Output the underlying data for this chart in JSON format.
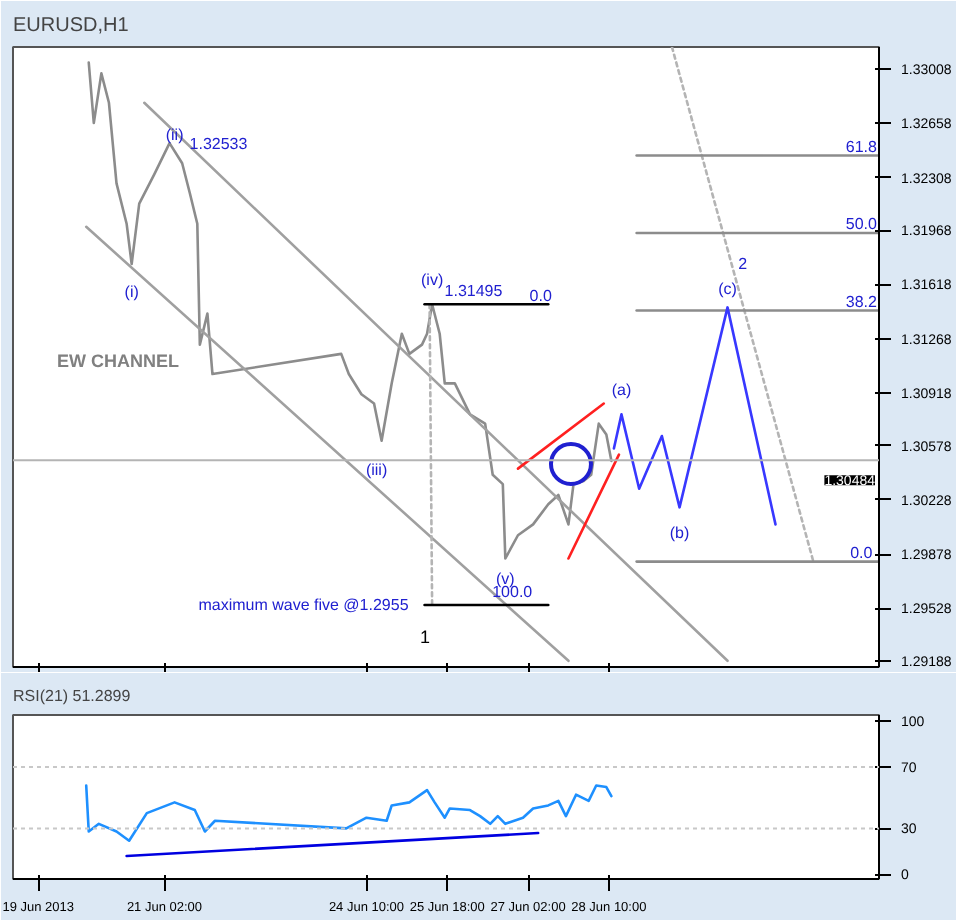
{
  "chart_data": [
    {
      "type": "line",
      "title": "EURUSD,H1",
      "xlim": [
        "2013-06-18T14:00",
        "2013-07-02T21:00"
      ],
      "ylim": [
        1.2915,
        1.3315
      ],
      "xticks": [
        {
          "value": "2013-06-19",
          "label": null
        },
        {
          "value": "2013-06-21T02:00",
          "label": null
        },
        {
          "value": "2013-06-24T10:00",
          "label": null
        },
        {
          "value": "2013-06-25T18:00",
          "label": null
        },
        {
          "value": "2013-06-27T02:00",
          "label": null
        },
        {
          "value": "2013-06-28T10:00",
          "label": null
        }
      ],
      "yticks": [
        1.33008,
        1.32658,
        1.32308,
        1.31968,
        1.31618,
        1.31268,
        1.30918,
        1.30578,
        1.30228,
        1.29878,
        1.29528,
        1.29188
      ],
      "tick_labels": "y",
      "grid": false,
      "marker": "none",
      "series": [
        {
          "color": "#8c8c8c",
          "x": [
            "2013-06-19T20:00",
            "2013-06-19T22:00",
            "2013-06-20T01:00",
            "2013-06-20T04:00",
            "2013-06-20T07:00",
            "2013-06-20T11:00",
            "2013-06-20T13:00",
            "2013-06-20T16:00",
            "2013-06-20T22:00",
            "2013-06-21T04:00",
            "2013-06-21T09:00",
            "2013-06-21T12:00",
            "2013-06-21T15:00",
            "2013-06-21T16:00",
            "2013-06-21T19:00",
            "2013-06-21T21:00",
            "2013-06-24T00:00",
            "2013-06-24T03:00",
            "2013-06-24T08:00",
            "2013-06-24T13:00",
            "2013-06-24T16:00",
            "2013-06-24T20:00",
            "2013-06-25T00:00",
            "2013-06-25T03:00",
            "2013-06-25T08:00",
            "2013-06-25T10:00",
            "2013-06-25T12:00",
            "2013-06-25T15:00",
            "2013-06-25T17:00",
            "2013-06-25T21:00",
            "2013-06-26T03:00",
            "2013-06-26T09:00",
            "2013-06-26T12:00",
            "2013-06-26T16:00",
            "2013-06-26T17:00",
            "2013-06-26T22:00",
            "2013-06-27T04:00",
            "2013-06-27T10:00",
            "2013-06-27T14:00",
            "2013-06-27T18:00",
            "2013-06-27T20:00",
            "2013-06-28T00:00",
            "2013-06-28T03:00",
            "2013-06-28T06:00",
            "2013-06-28T09:00",
            "2013-06-28T11:00"
          ],
          "values": [
            1.3305,
            1.3266,
            1.3298,
            1.3279,
            1.3227,
            1.3201,
            1.3175,
            1.3214,
            1.3233,
            1.3253,
            1.324,
            1.3221,
            1.3201,
            1.3123,
            1.3143,
            1.3104,
            1.3117,
            1.3104,
            1.3091,
            1.3085,
            1.3061,
            1.3098,
            1.313,
            1.3117,
            1.3123,
            1.313,
            1.3149,
            1.313,
            1.3098,
            1.3098,
            1.3078,
            1.3072,
            1.3039,
            1.3033,
            1.2985,
            1.3,
            1.3007,
            1.302,
            1.3026,
            1.3007,
            1.3033,
            1.3035,
            1.3039,
            1.3072,
            1.3065,
            1.3048
          ]
        },
        {
          "color": "#a0a0a0",
          "x": [
            "2013-06-20T18:00",
            "2013-06-30T09:00"
          ],
          "values": [
            1.3279,
            1.2919
          ]
        },
        {
          "color": "#a0a0a0",
          "x": [
            "2013-06-19T19:00",
            "2013-06-27T18:00"
          ],
          "values": [
            1.3199,
            1.2919
          ]
        },
        {
          "color": "#b4b4b4",
          "line_style": "dotted",
          "x": [
            "2013-06-29T11:00",
            "2013-07-01T19:00"
          ],
          "values": [
            1.3315,
            1.2983
          ]
        },
        {
          "color": "#b4b4b4",
          "line_style": "dotted",
          "x": [
            "2013-06-25T11:00",
            "2013-06-25T12:00"
          ],
          "values": [
            1.3149,
            1.2955
          ]
        },
        {
          "color": "#000000",
          "x": [
            "2013-06-25T09:00",
            "2013-06-27T10:00"
          ],
          "values": [
            1.3149,
            1.3149
          ]
        },
        {
          "color": "#000000",
          "x": [
            "2013-06-25T09:00",
            "2013-06-27T10:00"
          ],
          "values": [
            1.2955,
            1.2955
          ]
        },
        {
          "color": "#8c8c8c",
          "x": [
            "2013-06-28T21:00",
            "2013-07-02T21:00"
          ],
          "values": [
            1.3245,
            1.3245
          ]
        },
        {
          "color": "#8c8c8c",
          "x": [
            "2013-06-28T21:00",
            "2013-07-02T21:00"
          ],
          "values": [
            1.3195,
            1.3195
          ]
        },
        {
          "color": "#8c8c8c",
          "x": [
            "2013-06-28T21:00",
            "2013-07-02T21:00"
          ],
          "values": [
            1.3145,
            1.3145
          ]
        },
        {
          "color": "#8c8c8c",
          "x": [
            "2013-06-28T21:00",
            "2013-07-02T21:00"
          ],
          "values": [
            1.2983,
            1.2983
          ]
        },
        {
          "color": "#ff2020",
          "x": [
            "2013-06-26T22:00",
            "2013-06-28T08:00"
          ],
          "values": [
            1.3043,
            1.3085
          ]
        },
        {
          "color": "#ff2020",
          "x": [
            "2013-06-27T18:00",
            "2013-06-28T14:00"
          ],
          "values": [
            1.2985,
            1.3052
          ]
        },
        {
          "color": "#3838ff",
          "x": [
            "2013-06-28T12:00",
            "2013-06-28T15:00",
            "2013-06-28T22:00",
            "2013-06-29T07:00",
            "2013-06-29T14:00",
            "2013-06-30T09:00",
            "2013-07-01T04:00"
          ],
          "values": [
            1.3056,
            1.3078,
            1.303,
            1.3064,
            1.3018,
            1.3147,
            1.3007
          ]
        },
        {
          "type": "scatter",
          "marker": "circle",
          "color": "#2020d0",
          "x": [
            "2013-06-27T19:00"
          ],
          "values": [
            1.3046
          ]
        }
      ],
      "ref_lines": [
        {
          "axis": "y",
          "value": 1.30484,
          "label": "1.30484",
          "color": "#b4b4b4"
        }
      ],
      "annotations": [
        {
          "text": "(i)",
          "x": "2013-06-20T13:00",
          "y": 1.3175
        },
        {
          "text": "(ii)",
          "x": "2013-06-21T06:00",
          "y": 1.3258
        },
        {
          "text": "1.32533",
          "x": "2013-06-21T04:00",
          "y": 1.3253
        },
        {
          "text": "(iv)",
          "x": "2013-06-25T12:00",
          "y": 1.3149
        },
        {
          "text": "1.31495",
          "x": "2013-06-25T09:00",
          "y": 1.3149
        },
        {
          "text": "0.0",
          "x": "2013-06-27T07:00",
          "y": 1.3155
        },
        "EW CHANNEL",
        {
          "text": "(iii)",
          "x": "2013-06-24T14:00",
          "y": 1.3042
        },
        {
          "text": "(v)",
          "x": "2013-06-26T17:00",
          "y": 1.2985
        },
        {
          "text": "100.0",
          "x": "2013-06-27T10:00",
          "y": 1.2955
        },
        {
          "text": "maximum wave five @1.2955",
          "x": "2013-06-25T09:00",
          "y": 1.2955
        },
        "1",
        {
          "text": "(a)",
          "x": "2013-06-28T15:00",
          "y": 1.3078
        },
        {
          "text": "(b)",
          "x": "2013-06-29T14:00",
          "y": 1.3018
        },
        {
          "text": "(c)",
          "x": "2013-06-30T09:00",
          "y": 1.3147
        },
        {
          "text": "2",
          "x": "2013-06-30T15:00",
          "y": 1.3173
        },
        {
          "text": "61.8",
          "x": "2013-07-02T14:00",
          "y": 1.3245
        },
        {
          "text": "50.0",
          "x": "2013-07-02T14:00",
          "y": 1.3195
        },
        {
          "text": "38.2",
          "x": "2013-07-02T14:00",
          "y": 1.3145
        },
        {
          "text": "0.0",
          "x": "2013-07-02T14:00",
          "y": 1.2983
        }
      ]
    },
    {
      "type": "line",
      "title": "RSI(21) 51.2899",
      "xlim": [
        "2013-06-18T14:00",
        "2013-07-02T21:00"
      ],
      "ylim": [
        -3,
        104
      ],
      "xticks": [
        {
          "value": "2013-06-19",
          "label": "19 Jun 2013"
        },
        {
          "value": "2013-06-21T02:00",
          "label": "21 Jun 02:00"
        },
        {
          "value": "2013-06-24T10:00",
          "label": "24 Jun 10:00"
        },
        {
          "value": "2013-06-25T18:00",
          "label": "25 Jun 18:00"
        },
        {
          "value": "2013-06-27T02:00",
          "label": "27 Jun 02:00"
        },
        {
          "value": "2013-06-28T10:00",
          "label": "28 Jun 10:00"
        }
      ],
      "yticks": [
        0,
        30,
        70,
        100
      ],
      "grid": false,
      "marker": "none",
      "series": [
        {
          "color": "#1e90ff",
          "x": [
            "2013-06-19T19:00",
            "2013-06-19T20:00",
            "2013-06-20T00:00",
            "2013-06-20T07:00",
            "2013-06-20T12:00",
            "2013-06-20T19:00",
            "2013-06-21T06:00",
            "2013-06-21T14:00",
            "2013-06-21T18:00",
            "2013-06-21T22:00",
            "2013-06-24T02:00",
            "2013-06-24T10:00",
            "2013-06-24T18:00",
            "2013-06-24T20:00",
            "2013-06-25T03:00",
            "2013-06-25T10:00",
            "2013-06-25T13:00",
            "2013-06-25T17:00",
            "2013-06-25T19:00",
            "2013-06-26T03:00",
            "2013-06-26T07:00",
            "2013-06-26T11:00",
            "2013-06-26T14:00",
            "2013-06-26T17:00",
            "2013-06-27T00:00",
            "2013-06-27T04:00",
            "2013-06-27T10:00",
            "2013-06-27T14:00",
            "2013-06-27T17:00",
            "2013-06-27T21:00",
            "2013-06-28T02:00",
            "2013-06-28T05:00",
            "2013-06-28T09:00",
            "2013-06-28T11:00"
          ],
          "values": [
            58,
            28,
            33,
            28,
            22,
            40,
            47,
            42,
            28,
            35,
            30,
            37,
            35,
            45,
            47,
            55,
            47,
            37,
            43,
            42,
            38,
            33,
            38,
            33,
            37,
            43,
            45,
            48,
            38,
            52,
            48,
            58,
            57,
            51
          ]
        },
        {
          "color": "#0000e0",
          "x": [
            "2013-06-20T11:00",
            "2013-06-27T06:00"
          ],
          "values": [
            12,
            27
          ]
        }
      ],
      "ref_lines": [
        {
          "axis": "y",
          "value": 30,
          "color": "#c8c8c8",
          "line_style": "dotted"
        },
        {
          "axis": "y",
          "value": 70,
          "color": "#c8c8c8",
          "line_style": "dotted"
        }
      ]
    }
  ]
}
